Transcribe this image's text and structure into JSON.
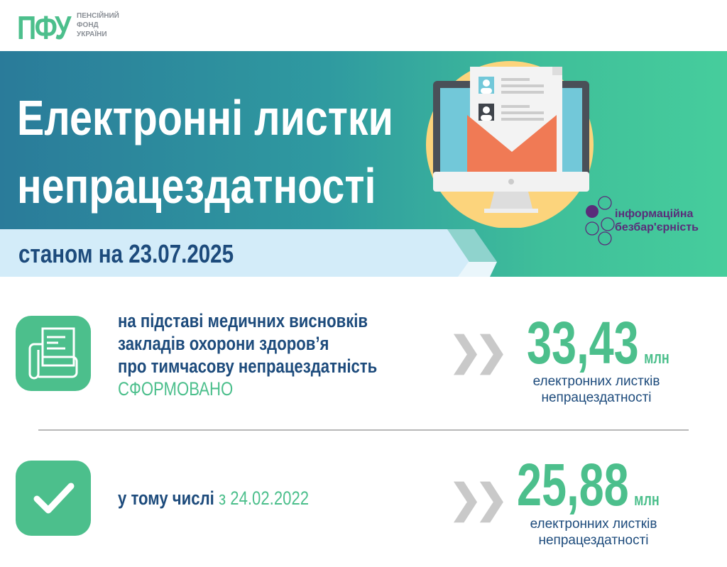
{
  "logo": {
    "mark": "ПФУ",
    "lines": [
      "ПЕНСІЙНИЙ",
      "ФОНД",
      "УКРАЇНИ"
    ]
  },
  "title": {
    "line1": "Електронні листки",
    "line2": "непрацездатності"
  },
  "date_label": "станом на 23.07.2025",
  "partner_logo": {
    "line1": "інформаційна",
    "line2": "безбар'єрність"
  },
  "rows": [
    {
      "icon": "document-scroll-icon",
      "lines": [
        "на підставі медичних висновків",
        "закладів охорони здоров’я",
        "про тимчасову непрацездатність"
      ],
      "highlight": "СФОРМОВАНО",
      "value": "33,43",
      "unit": "млн",
      "caption": [
        "електронних листків",
        "непрацездатності"
      ]
    },
    {
      "icon": "checkmark-icon",
      "prefix": "у тому числі",
      "highlight": "з 24.02.2022",
      "value": "25,88",
      "unit": "млн",
      "caption": [
        "електронних листків",
        "непрацездатності"
      ]
    }
  ],
  "colors": {
    "accent_green": "#4cbf8c",
    "dark_blue": "#1d4b7c",
    "strip_blue": "#d3ecf9",
    "purple": "#5a2d7a"
  }
}
